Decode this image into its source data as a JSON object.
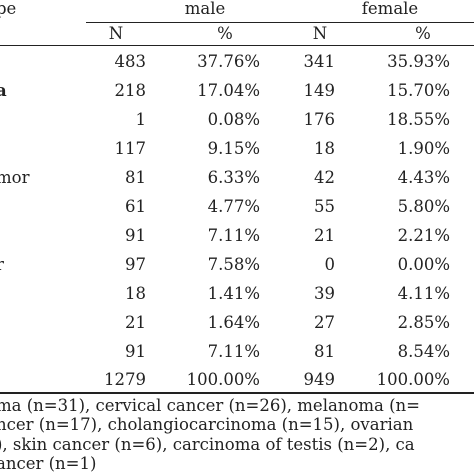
{
  "header": {
    "type_label": "pe",
    "male": "male",
    "female": "female",
    "n": "N",
    "pct": "%"
  },
  "rows": [
    {
      "type": "",
      "male_n": "483",
      "male_pct": "37.76%",
      "female_n": "341",
      "female_pct": "35.93%"
    },
    {
      "type": "a",
      "male_n": "218",
      "male_pct": "17.04%",
      "female_n": "149",
      "female_pct": "15.70%"
    },
    {
      "type": "",
      "male_n": "1",
      "male_pct": "0.08%",
      "female_n": "176",
      "female_pct": "18.55%"
    },
    {
      "type": "",
      "male_n": "117",
      "male_pct": "9.15%",
      "female_n": "18",
      "female_pct": "1.90%"
    },
    {
      "type": "mor",
      "male_n": "81",
      "male_pct": "6.33%",
      "female_n": "42",
      "female_pct": "4.43%"
    },
    {
      "type": "",
      "male_n": "61",
      "male_pct": "4.77%",
      "female_n": "55",
      "female_pct": "5.80%"
    },
    {
      "type": "",
      "male_n": "91",
      "male_pct": "7.11%",
      "female_n": "21",
      "female_pct": "2.21%"
    },
    {
      "type": "r",
      "male_n": "97",
      "male_pct": "7.58%",
      "female_n": "0",
      "female_pct": "0.00%"
    },
    {
      "type": "",
      "male_n": "18",
      "male_pct": "1.41%",
      "female_n": "39",
      "female_pct": "4.11%"
    },
    {
      "type": "",
      "male_n": "21",
      "male_pct": "1.64%",
      "female_n": "27",
      "female_pct": "2.85%"
    },
    {
      "type": "",
      "male_n": "91",
      "male_pct": "7.11%",
      "female_n": "81",
      "female_pct": "8.54%"
    },
    {
      "type": "",
      "male_n": "1279",
      "male_pct": "100.00%",
      "female_n": "949",
      "female_pct": "100.00%"
    }
  ],
  "footnote": [
    "ma (n=31), cervical cancer (n=26), melanoma (n=",
    "ncer (n=17), cholangiocarcinoma (n=15), ovarian",
    "), skin cancer (n=6), carcinoma of testis (n=2), ca",
    "ancer (n=1)"
  ]
}
